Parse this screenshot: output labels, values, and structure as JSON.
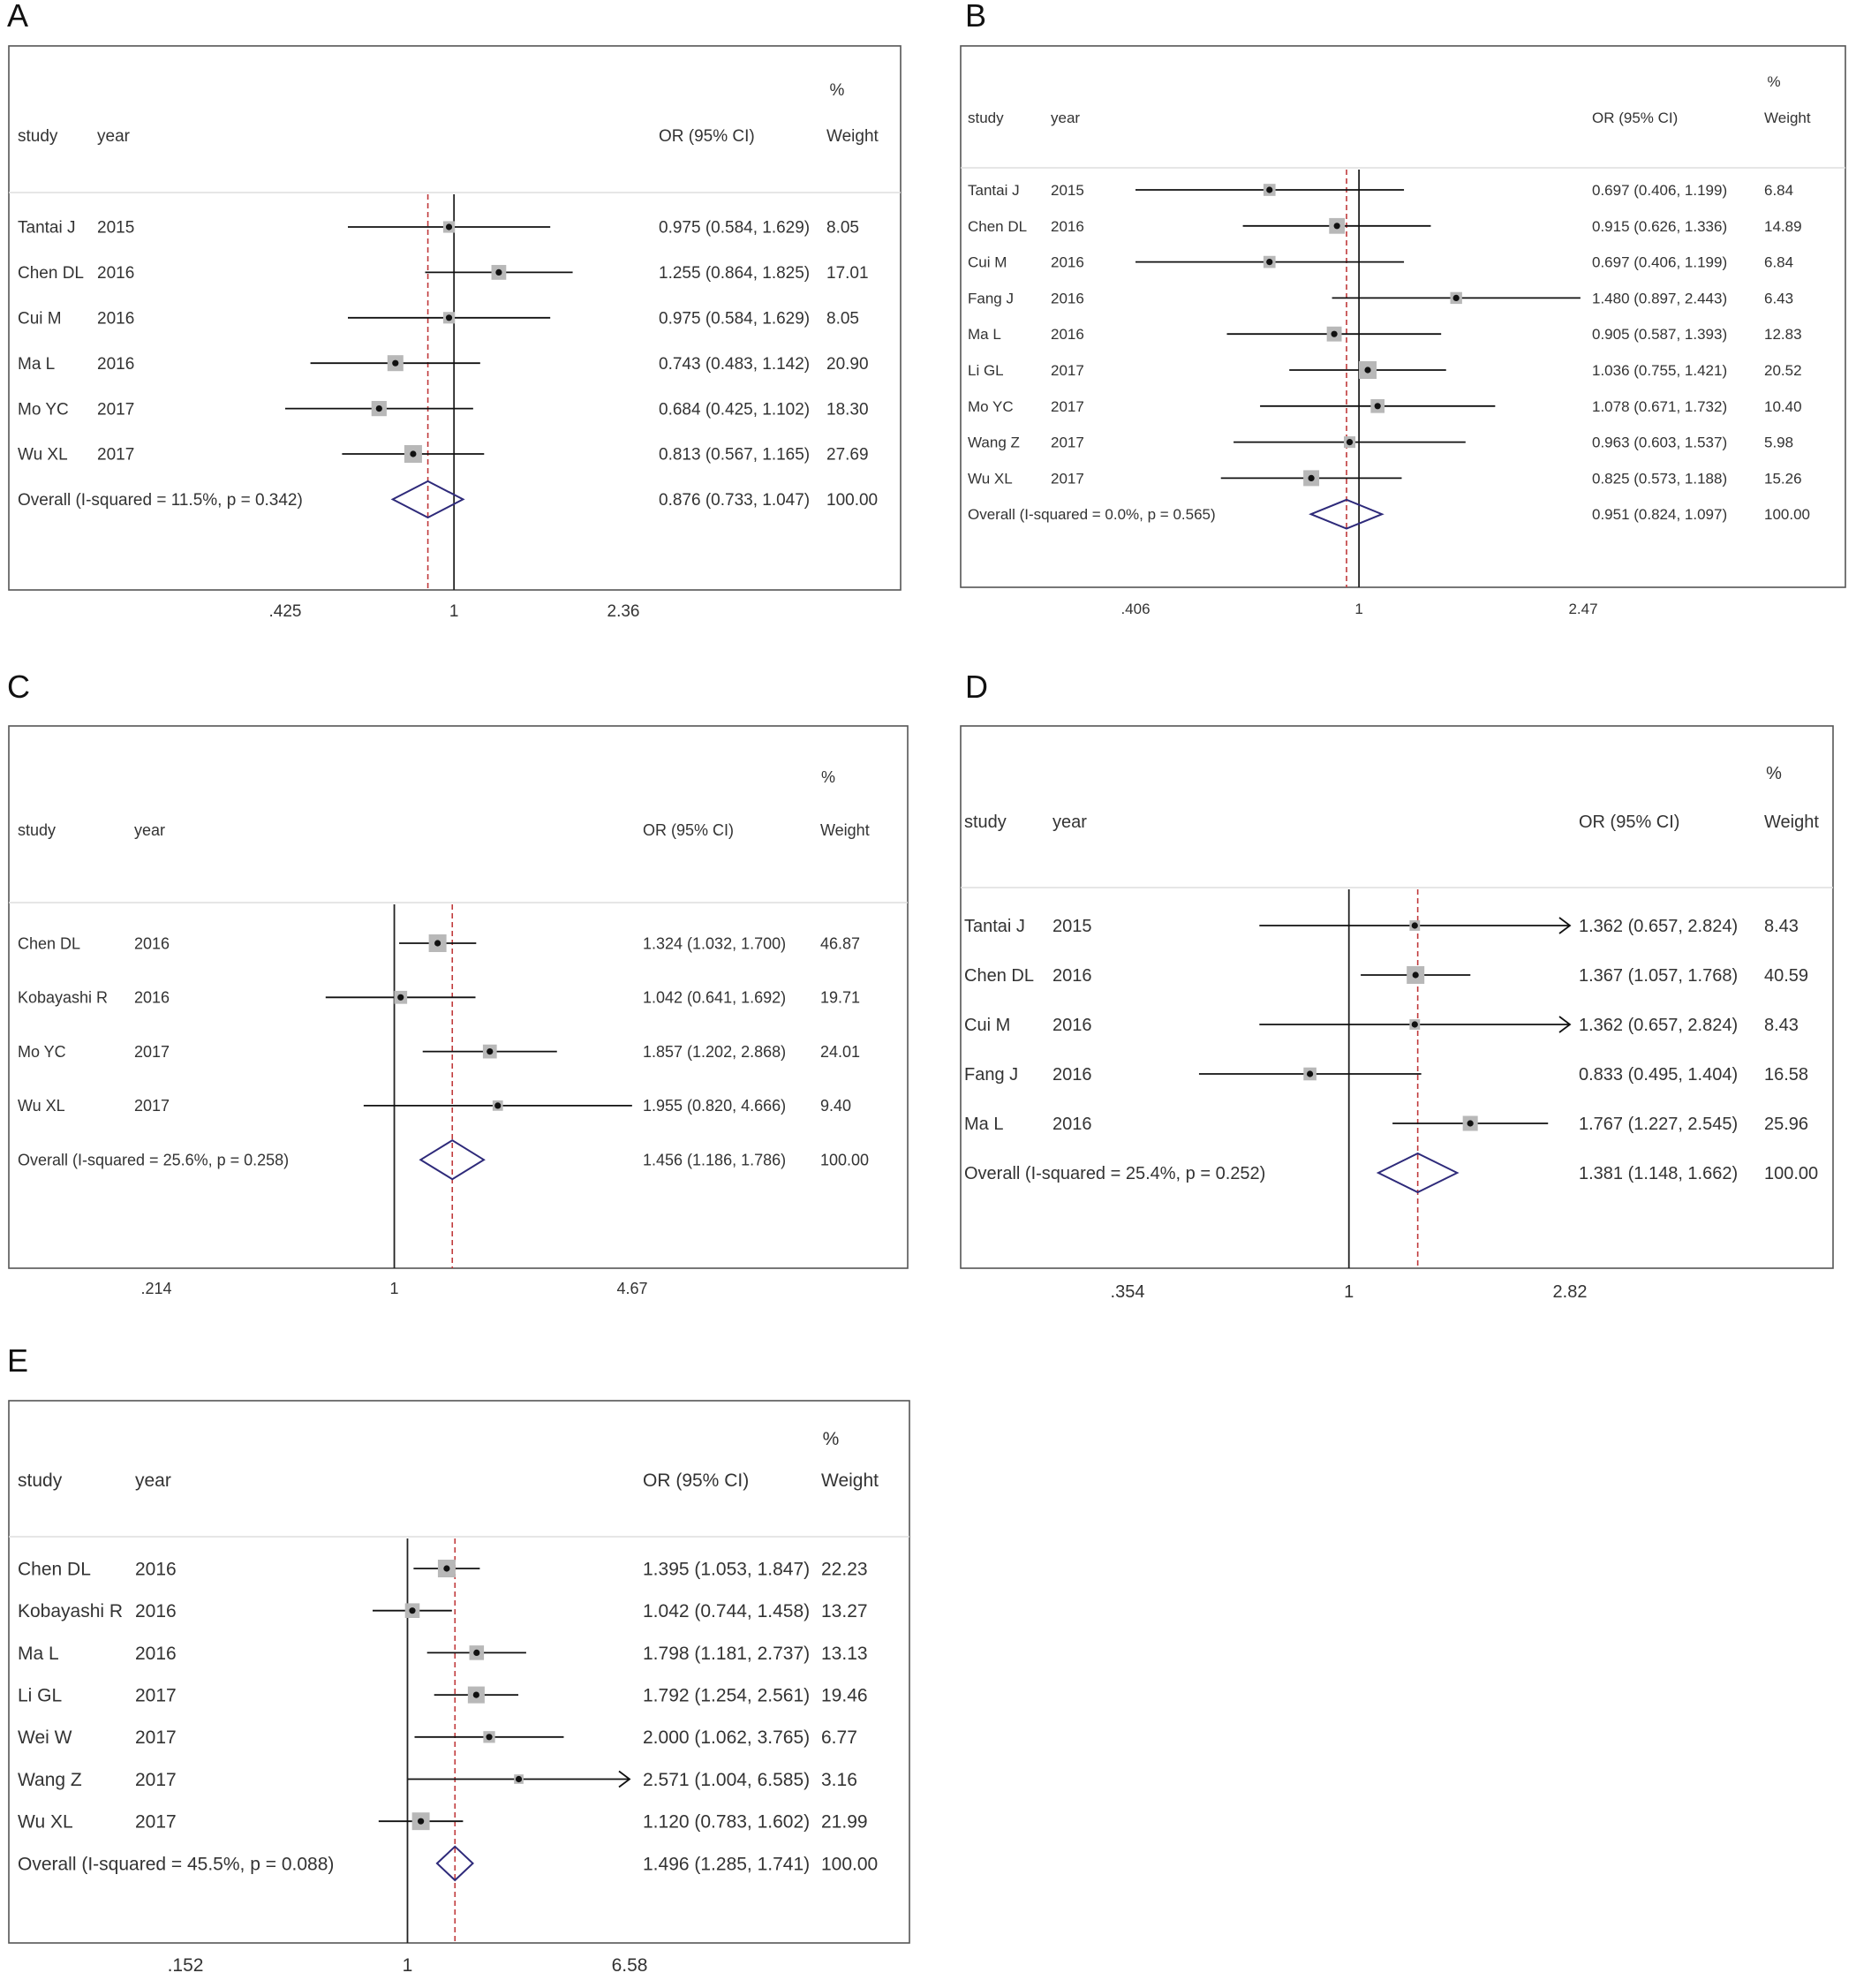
{
  "chart_data": [
    {
      "panel": "A",
      "type": "forest",
      "headers": {
        "study": "study",
        "year": "year",
        "or": "OR (95% CI)",
        "pct": "%",
        "weight": "Weight"
      },
      "ticks": [
        {
          "label": ".425",
          "value": 0.425
        },
        {
          "label": "1",
          "value": 1
        },
        {
          "label": "2.36",
          "value": 2.36
        }
      ],
      "xlim": [
        0.425,
        2.36
      ],
      "log_scale": true,
      "reference_line": 1,
      "studies": [
        {
          "study": "Tantai J",
          "year": "2015",
          "or": 0.975,
          "lo": 0.584,
          "hi": 1.629,
          "ci_text": "0.975 (0.584, 1.629)",
          "weight": "8.05"
        },
        {
          "study": "Chen DL",
          "year": "2016",
          "or": 1.255,
          "lo": 0.864,
          "hi": 1.825,
          "ci_text": "1.255 (0.864, 1.825)",
          "weight": "17.01"
        },
        {
          "study": "Cui M",
          "year": "2016",
          "or": 0.975,
          "lo": 0.584,
          "hi": 1.629,
          "ci_text": "0.975 (0.584, 1.629)",
          "weight": "8.05"
        },
        {
          "study": "Ma L",
          "year": "2016",
          "or": 0.743,
          "lo": 0.483,
          "hi": 1.142,
          "ci_text": "0.743 (0.483, 1.142)",
          "weight": "20.90"
        },
        {
          "study": "Mo YC",
          "year": "2017",
          "or": 0.684,
          "lo": 0.425,
          "hi": 1.102,
          "ci_text": "0.684 (0.425, 1.102)",
          "weight": "18.30"
        },
        {
          "study": "Wu XL",
          "year": "2017",
          "or": 0.813,
          "lo": 0.567,
          "hi": 1.165,
          "ci_text": "0.813 (0.567, 1.165)",
          "weight": "27.69"
        }
      ],
      "overall": {
        "label": "Overall  (I-squared = 11.5%, p = 0.342)",
        "or": 0.876,
        "lo": 0.733,
        "hi": 1.047,
        "ci_text": "0.876 (0.733, 1.047)",
        "weight": "100.00"
      }
    },
    {
      "panel": "B",
      "type": "forest",
      "headers": {
        "study": "study",
        "year": "year",
        "or": "OR (95% CI)",
        "pct": "%",
        "weight": "Weight"
      },
      "ticks": [
        {
          "label": ".406",
          "value": 0.406
        },
        {
          "label": "1",
          "value": 1
        },
        {
          "label": "2.47",
          "value": 2.47
        }
      ],
      "xlim": [
        0.406,
        2.47
      ],
      "log_scale": true,
      "reference_line": 1,
      "studies": [
        {
          "study": "Tantai J",
          "year": "2015",
          "or": 0.697,
          "lo": 0.406,
          "hi": 1.199,
          "ci_text": "0.697 (0.406, 1.199)",
          "weight": "6.84"
        },
        {
          "study": "Chen DL",
          "year": "2016",
          "or": 0.915,
          "lo": 0.626,
          "hi": 1.336,
          "ci_text": "0.915 (0.626, 1.336)",
          "weight": "14.89"
        },
        {
          "study": "Cui M",
          "year": "2016",
          "or": 0.697,
          "lo": 0.406,
          "hi": 1.199,
          "ci_text": "0.697 (0.406, 1.199)",
          "weight": "6.84"
        },
        {
          "study": "Fang J",
          "year": "2016",
          "or": 1.48,
          "lo": 0.897,
          "hi": 2.443,
          "ci_text": "1.480 (0.897, 2.443)",
          "weight": "6.43"
        },
        {
          "study": "Ma L",
          "year": "2016",
          "or": 0.905,
          "lo": 0.587,
          "hi": 1.393,
          "ci_text": "0.905 (0.587, 1.393)",
          "weight": "12.83"
        },
        {
          "study": "Li GL",
          "year": "2017",
          "or": 1.036,
          "lo": 0.755,
          "hi": 1.421,
          "ci_text": "1.036 (0.755, 1.421)",
          "weight": "20.52"
        },
        {
          "study": "Mo YC",
          "year": "2017",
          "or": 1.078,
          "lo": 0.671,
          "hi": 1.732,
          "ci_text": "1.078 (0.671, 1.732)",
          "weight": "10.40"
        },
        {
          "study": "Wang Z",
          "year": "2017",
          "or": 0.963,
          "lo": 0.603,
          "hi": 1.537,
          "ci_text": "0.963 (0.603, 1.537)",
          "weight": "5.98"
        },
        {
          "study": "Wu XL",
          "year": "2017",
          "or": 0.825,
          "lo": 0.573,
          "hi": 1.188,
          "ci_text": "0.825 (0.573, 1.188)",
          "weight": "15.26"
        }
      ],
      "overall": {
        "label": "Overall  (I-squared = 0.0%, p = 0.565)",
        "or": 0.951,
        "lo": 0.824,
        "hi": 1.097,
        "ci_text": "0.951 (0.824, 1.097)",
        "weight": "100.00"
      }
    },
    {
      "panel": "C",
      "type": "forest",
      "headers": {
        "study": "study",
        "year": "year",
        "or": "OR (95% CI)",
        "pct": "%",
        "weight": "Weight"
      },
      "ticks": [
        {
          "label": ".214",
          "value": 0.214
        },
        {
          "label": "1",
          "value": 1
        },
        {
          "label": "4.67",
          "value": 4.67
        }
      ],
      "xlim": [
        0.214,
        4.67
      ],
      "log_scale": true,
      "reference_line": 1,
      "studies": [
        {
          "study": "Chen DL",
          "year": "2016",
          "or": 1.324,
          "lo": 1.032,
          "hi": 1.7,
          "ci_text": "1.324 (1.032, 1.700)",
          "weight": "46.87"
        },
        {
          "study": "Kobayashi R",
          "year": "2016",
          "or": 1.042,
          "lo": 0.641,
          "hi": 1.692,
          "ci_text": "1.042 (0.641, 1.692)",
          "weight": "19.71"
        },
        {
          "study": "Mo YC",
          "year": "2017",
          "or": 1.857,
          "lo": 1.202,
          "hi": 2.868,
          "ci_text": "1.857 (1.202, 2.868)",
          "weight": "24.01"
        },
        {
          "study": "Wu XL",
          "year": "2017",
          "or": 1.955,
          "lo": 0.82,
          "hi": 4.666,
          "ci_text": "1.955 (0.820, 4.666)",
          "weight": "9.40"
        }
      ],
      "overall": {
        "label": "Overall  (I-squared = 25.6%, p = 0.258)",
        "or": 1.456,
        "lo": 1.186,
        "hi": 1.786,
        "ci_text": "1.456 (1.186, 1.786)",
        "weight": "100.00"
      }
    },
    {
      "panel": "D",
      "type": "forest",
      "headers": {
        "study": "study",
        "year": "year",
        "or": "OR (95% CI)",
        "pct": "%",
        "weight": "Weight"
      },
      "ticks": [
        {
          "label": ".354",
          "value": 0.354
        },
        {
          "label": "1",
          "value": 1
        },
        {
          "label": "2.82",
          "value": 2.82
        }
      ],
      "xlim": [
        0.354,
        2.82
      ],
      "log_scale": true,
      "reference_line": 1,
      "studies": [
        {
          "study": "Tantai J",
          "year": "2015",
          "or": 1.362,
          "lo": 0.657,
          "hi": 2.824,
          "ci_text": "1.362 (0.657, 2.824)",
          "weight": "8.43"
        },
        {
          "study": "Chen DL",
          "year": "2016",
          "or": 1.367,
          "lo": 1.057,
          "hi": 1.768,
          "ci_text": "1.367 (1.057, 1.768)",
          "weight": "40.59"
        },
        {
          "study": "Cui M",
          "year": "2016",
          "or": 1.362,
          "lo": 0.657,
          "hi": 2.824,
          "ci_text": "1.362 (0.657, 2.824)",
          "weight": "8.43"
        },
        {
          "study": "Fang J",
          "year": "2016",
          "or": 0.833,
          "lo": 0.495,
          "hi": 1.404,
          "ci_text": "0.833 (0.495, 1.404)",
          "weight": "16.58"
        },
        {
          "study": "Ma L",
          "year": "2016",
          "or": 1.767,
          "lo": 1.227,
          "hi": 2.545,
          "ci_text": "1.767 (1.227, 2.545)",
          "weight": "25.96"
        }
      ],
      "overall": {
        "label": "Overall  (I-squared = 25.4%, p = 0.252)",
        "or": 1.381,
        "lo": 1.148,
        "hi": 1.662,
        "ci_text": "1.381 (1.148, 1.662)",
        "weight": "100.00"
      }
    },
    {
      "panel": "E",
      "type": "forest",
      "headers": {
        "study": "study",
        "year": "year",
        "or": "OR (95% CI)",
        "pct": "%",
        "weight": "Weight"
      },
      "ticks": [
        {
          "label": ".152",
          "value": 0.152
        },
        {
          "label": "1",
          "value": 1
        },
        {
          "label": "6.58",
          "value": 6.58
        }
      ],
      "xlim": [
        0.152,
        6.58
      ],
      "log_scale": true,
      "reference_line": 1,
      "studies": [
        {
          "study": "Chen DL",
          "year": "2016",
          "or": 1.395,
          "lo": 1.053,
          "hi": 1.847,
          "ci_text": "1.395 (1.053, 1.847)",
          "weight": "22.23"
        },
        {
          "study": "Kobayashi R",
          "year": "2016",
          "or": 1.042,
          "lo": 0.744,
          "hi": 1.458,
          "ci_text": "1.042 (0.744, 1.458)",
          "weight": "13.27"
        },
        {
          "study": "Ma L",
          "year": "2016",
          "or": 1.798,
          "lo": 1.181,
          "hi": 2.737,
          "ci_text": "1.798 (1.181, 2.737)",
          "weight": "13.13"
        },
        {
          "study": "Li GL",
          "year": "2017",
          "or": 1.792,
          "lo": 1.254,
          "hi": 2.561,
          "ci_text": "1.792 (1.254, 2.561)",
          "weight": "19.46"
        },
        {
          "study": "Wei W",
          "year": "2017",
          "or": 2.0,
          "lo": 1.062,
          "hi": 3.765,
          "ci_text": "2.000 (1.062, 3.765)",
          "weight": "6.77"
        },
        {
          "study": "Wang Z",
          "year": "2017",
          "or": 2.571,
          "lo": 1.004,
          "hi": 6.585,
          "ci_text": "2.571 (1.004, 6.585)",
          "weight": "3.16"
        },
        {
          "study": "Wu XL",
          "year": "2017",
          "or": 1.12,
          "lo": 0.783,
          "hi": 1.602,
          "ci_text": "1.120 (0.783, 1.602)",
          "weight": "21.99"
        }
      ],
      "overall": {
        "label": "Overall  (I-squared = 45.5%, p = 0.088)",
        "or": 1.496,
        "lo": 1.285,
        "hi": 1.741,
        "ci_text": "1.496 (1.285, 1.741)",
        "weight": "100.00"
      }
    }
  ],
  "colors": {
    "frame": "#555555",
    "ci_line": "#111111",
    "box": "#b8b8b8",
    "point": "#111111",
    "null_line": "#222222",
    "pooled_line": "#c0393b",
    "diamond": "#2e2a7a",
    "text": "#333333"
  }
}
